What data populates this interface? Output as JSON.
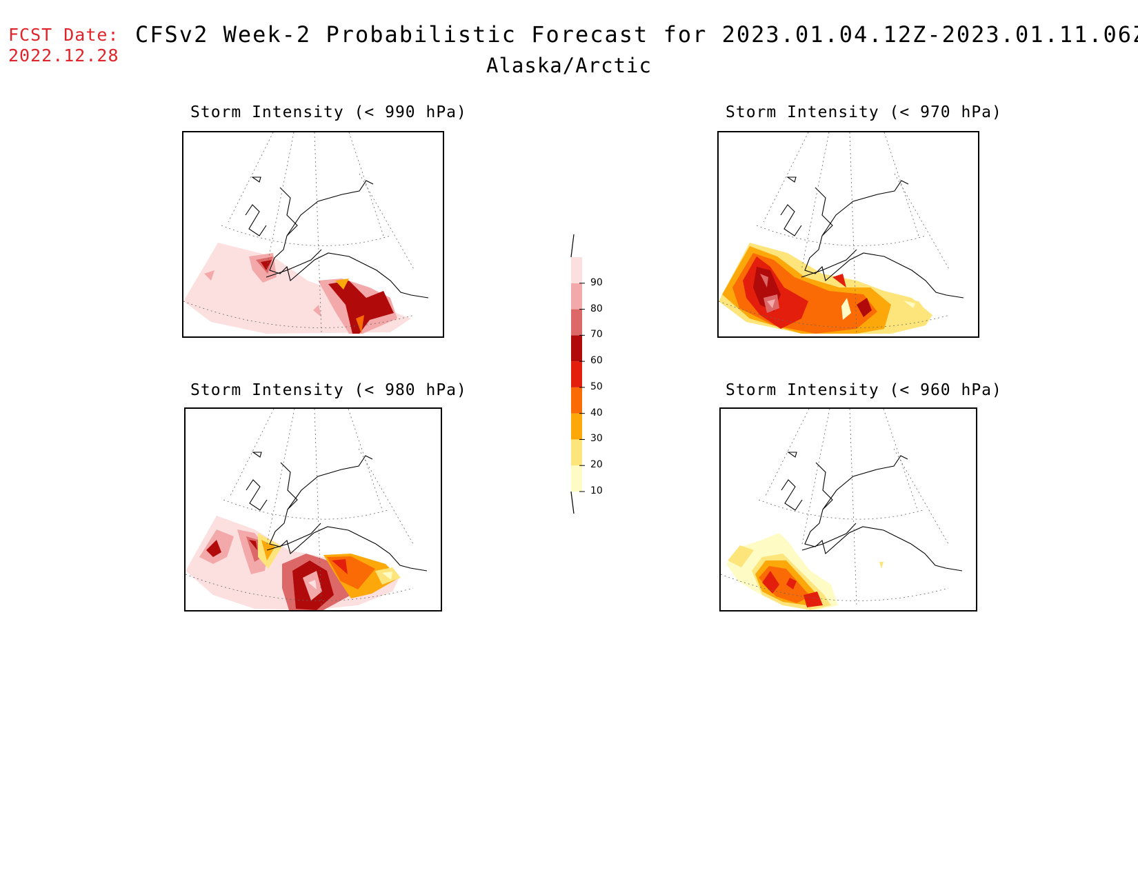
{
  "fcst": {
    "label": "FCST Date:",
    "date": "2022.12.28"
  },
  "title": "CFSv2 Week-2 Probabilistic Forecast for 2023.01.04.12Z-2023.01.11.06Z",
  "subtitle": "Alaska/Arctic",
  "panels": [
    {
      "id": "p990",
      "title": "Storm Intensity (< 990 hPa)"
    },
    {
      "id": "p970",
      "title": "Storm Intensity (< 970 hPa)"
    },
    {
      "id": "p980",
      "title": "Storm Intensity (< 980 hPa)"
    },
    {
      "id": "p960",
      "title": "Storm Intensity (< 960 hPa)"
    }
  ],
  "legend": {
    "levels": [
      "10",
      "20",
      "30",
      "40",
      "50",
      "60",
      "70",
      "80",
      "90"
    ],
    "colors": [
      "#fffbc4",
      "#fde57c",
      "#fca70a",
      "#fb6b05",
      "#e31e0c",
      "#b00a0a",
      "#dd6868",
      "#f3a9a9",
      "#fce0e0"
    ]
  }
}
